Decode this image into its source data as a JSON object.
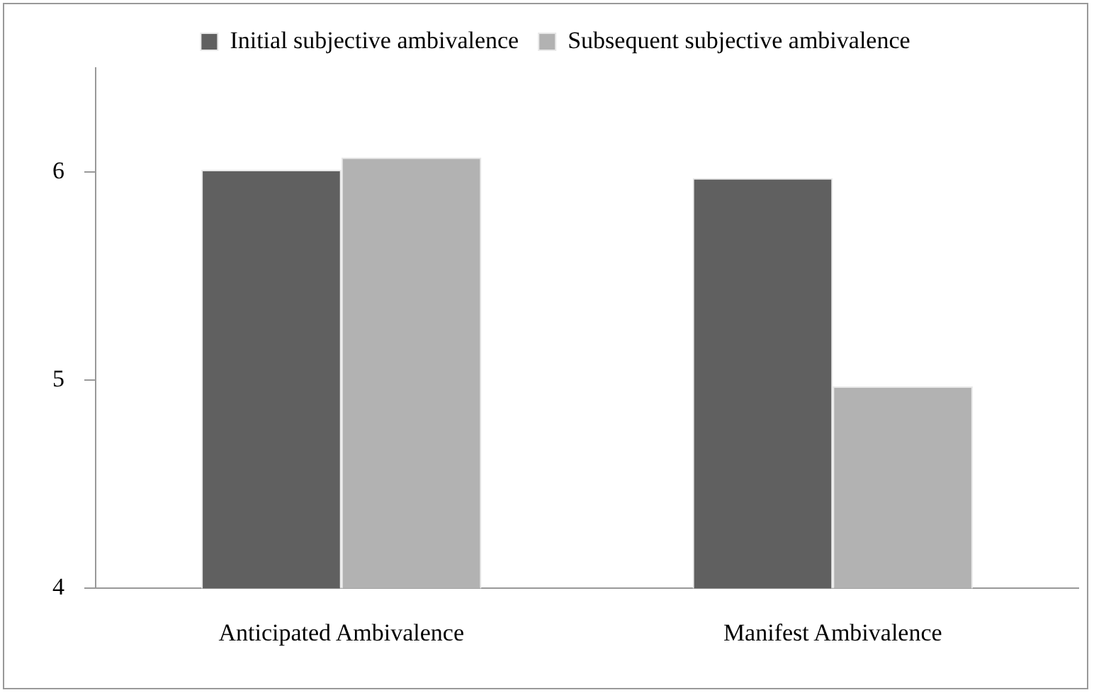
{
  "chart_data": {
    "type": "bar",
    "categories": [
      "Anticipated Ambivalence",
      "Manifest Ambivalence"
    ],
    "series": [
      {
        "name": "Initial subjective ambivalence",
        "color": "#606060",
        "values": [
          6.01,
          5.97
        ]
      },
      {
        "name": "Subsequent subjective ambivalence",
        "color": "#b2b2b2",
        "values": [
          6.07,
          4.97
        ]
      }
    ],
    "ylim": [
      4,
      6.5
    ],
    "yticks": [
      4,
      5,
      6
    ],
    "grid": false,
    "legend": "top"
  }
}
